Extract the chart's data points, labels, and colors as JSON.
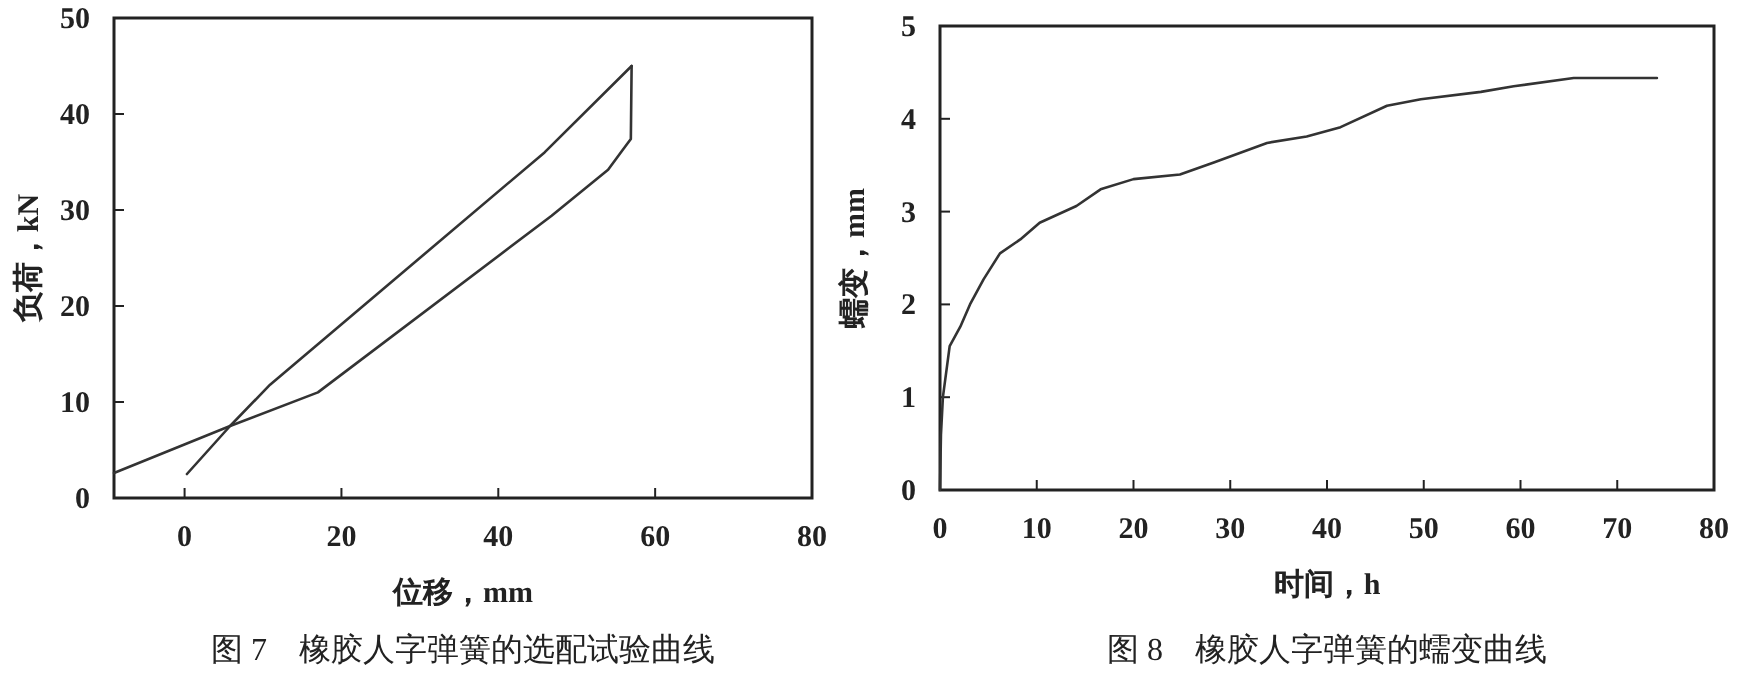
{
  "chart_data": [
    {
      "type": "line",
      "xlabel": "位移，mm",
      "ylabel": "负荷，kN",
      "annotations": [
        "图 7　橡胶人字弹簧的选配试验曲线"
      ],
      "xlim": [
        -9,
        80
      ],
      "ylim": [
        0,
        50
      ],
      "xticks": [
        0,
        20,
        40,
        60,
        80
      ],
      "yticks": [
        0,
        10,
        20,
        30,
        40,
        50
      ],
      "grid": false,
      "marker": "none",
      "line_style": "solid",
      "series": [
        {
          "color": "#333333",
          "x": [
            -9,
            5.8,
            17,
            46.8,
            54,
            55.9,
            56.9,
            57
          ],
          "values": [
            2.6,
            7.5,
            11,
            29.4,
            34.2,
            36.3,
            37.4,
            45
          ]
        },
        {
          "color": "#333333",
          "x": [
            0.3,
            5.8,
            10.9,
            45.9,
            57
          ],
          "values": [
            2.5,
            7.5,
            11.8,
            36,
            45
          ]
        }
      ]
    },
    {
      "type": "line",
      "xlabel": "时间，h",
      "ylabel": "蠕变，mm",
      "annotations": [
        "图 8　橡胶人字弹簧的蠕变曲线"
      ],
      "xlim": [
        0,
        80
      ],
      "ylim": [
        0,
        5
      ],
      "xticks": [
        0,
        10,
        20,
        30,
        40,
        50,
        60,
        70,
        80
      ],
      "yticks": [
        0,
        1,
        2,
        3,
        4,
        5
      ],
      "grid": false,
      "marker": "none",
      "line_style": "solid",
      "series": [
        {
          "color": "#333333",
          "x": [
            0,
            0.1,
            0.3,
            1,
            2.1,
            3.1,
            4.5,
            6.2,
            8.3,
            10.3,
            14.1,
            16.6,
            20,
            24.8,
            28.3,
            33.8,
            37.9,
            41.4,
            46.2,
            49.7,
            55.9,
            59.3,
            65.5,
            74.1
          ],
          "values": [
            0,
            0.6,
            1.0,
            1.55,
            1.76,
            2.0,
            2.27,
            2.55,
            2.7,
            2.88,
            3.06,
            3.24,
            3.35,
            3.4,
            3.53,
            3.74,
            3.81,
            3.91,
            4.14,
            4.21,
            4.29,
            4.35,
            4.44,
            4.44
          ]
        }
      ]
    }
  ]
}
